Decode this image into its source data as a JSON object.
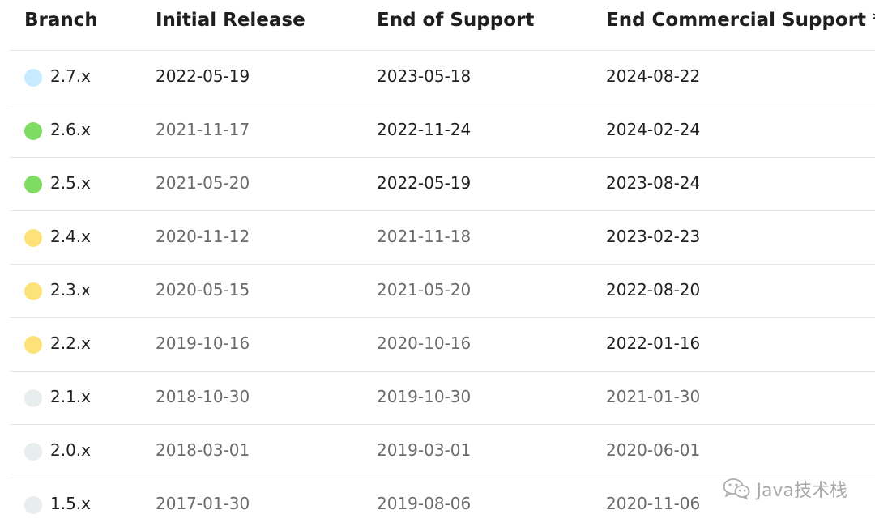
{
  "table": {
    "headers": {
      "branch": "Branch",
      "initial": "Initial Release",
      "eos": "End of Support",
      "ecs": "End Commercial Support *"
    },
    "rows": [
      {
        "branch": "2.7.x",
        "dot": "#c8ebff",
        "initial": "2022-05-19",
        "eos": "2023-05-18",
        "ecs": "2024-08-22",
        "colors": [
          "#1f1f1f",
          "#1f1f1f",
          "#1f1f1f"
        ]
      },
      {
        "branch": "2.6.x",
        "dot": "#7fdc62",
        "initial": "2021-11-17",
        "eos": "2022-11-24",
        "ecs": "2024-02-24",
        "colors": [
          "#6b6b6b",
          "#1f1f1f",
          "#1f1f1f"
        ]
      },
      {
        "branch": "2.5.x",
        "dot": "#7fdc62",
        "initial": "2021-05-20",
        "eos": "2022-05-19",
        "ecs": "2023-08-24",
        "colors": [
          "#6b6b6b",
          "#1f1f1f",
          "#1f1f1f"
        ]
      },
      {
        "branch": "2.4.x",
        "dot": "#fde27a",
        "initial": "2020-11-12",
        "eos": "2021-11-18",
        "ecs": "2023-02-23",
        "colors": [
          "#6b6b6b",
          "#6b6b6b",
          "#1f1f1f"
        ]
      },
      {
        "branch": "2.3.x",
        "dot": "#fde27a",
        "initial": "2020-05-15",
        "eos": "2021-05-20",
        "ecs": "2022-08-20",
        "colors": [
          "#6b6b6b",
          "#6b6b6b",
          "#1f1f1f"
        ]
      },
      {
        "branch": "2.2.x",
        "dot": "#fde27a",
        "initial": "2019-10-16",
        "eos": "2020-10-16",
        "ecs": "2022-01-16",
        "colors": [
          "#6b6b6b",
          "#6b6b6b",
          "#1f1f1f"
        ]
      },
      {
        "branch": "2.1.x",
        "dot": "#e8eded",
        "initial": "2018-10-30",
        "eos": "2019-10-30",
        "ecs": "2021-01-30",
        "colors": [
          "#6b6b6b",
          "#6b6b6b",
          "#6b6b6b"
        ]
      },
      {
        "branch": "2.0.x",
        "dot": "#e8eded",
        "initial": "2018-03-01",
        "eos": "2019-03-01",
        "ecs": "2020-06-01",
        "colors": [
          "#6b6b6b",
          "#6b6b6b",
          "#6b6b6b"
        ]
      },
      {
        "branch": "1.5.x",
        "dot": "#e8eded",
        "initial": "2017-01-30",
        "eos": "2019-08-06",
        "ecs": "2020-11-06",
        "colors": [
          "#6b6b6b",
          "#6b6b6b",
          "#6b6b6b"
        ]
      }
    ]
  },
  "watermark": {
    "icon": "wechat-icon",
    "text": "Java技术栈"
  }
}
